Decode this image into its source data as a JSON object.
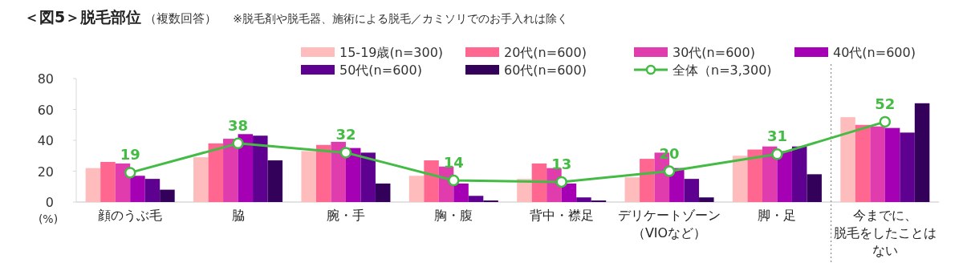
{
  "chart_data": {
    "type": "bar",
    "title": "＜図5＞脱毛部位",
    "subtitle": "（複数回答）",
    "annotations": [
      "※脱毛剤や脱毛器、施術による脱毛／カミソリでのお手入れは除く"
    ],
    "ylabel": "(%)",
    "categories": [
      "顔のうぶ毛",
      "脇",
      "腕・手",
      "胸・腹",
      "背中・襟足",
      "デリケートゾーン（VIOなど）",
      "脚・足",
      "今までに、脱毛をしたことはない"
    ],
    "ylim": [
      0,
      80
    ],
    "yticks": [
      0,
      20,
      40,
      60,
      80
    ],
    "grid": false,
    "legend": "top",
    "tick_labels": "xy",
    "series": [
      {
        "name": "15-19歳(n=300)",
        "color": "#ffbcbc",
        "values": [
          22,
          29,
          33,
          17,
          15,
          16,
          30,
          55
        ]
      },
      {
        "name": "20代(n=600)",
        "color": "#ff6690",
        "values": [
          26,
          38,
          37,
          27,
          25,
          28,
          34,
          50
        ]
      },
      {
        "name": "30代(n=600)",
        "color": "#e03cae",
        "values": [
          25,
          41,
          39,
          23,
          22,
          32,
          36,
          49
        ]
      },
      {
        "name": "40代(n=600)",
        "color": "#a600b4",
        "values": [
          17,
          44,
          35,
          12,
          12,
          22,
          33,
          48
        ]
      },
      {
        "name": "50代(n=600)",
        "color": "#5e0090",
        "values": [
          15,
          43,
          32,
          4,
          3,
          15,
          36,
          45
        ]
      },
      {
        "name": "60代(n=600)",
        "color": "#33005a",
        "values": [
          8,
          27,
          12,
          1,
          1,
          3,
          18,
          64
        ]
      },
      {
        "name": "全体（n=3,300)",
        "type": "line",
        "color": "#44bb44",
        "marker": "circle",
        "line_style": "solid",
        "data_labels": true,
        "values": [
          19,
          38,
          32,
          14,
          13,
          20,
          31,
          52
        ]
      }
    ]
  }
}
